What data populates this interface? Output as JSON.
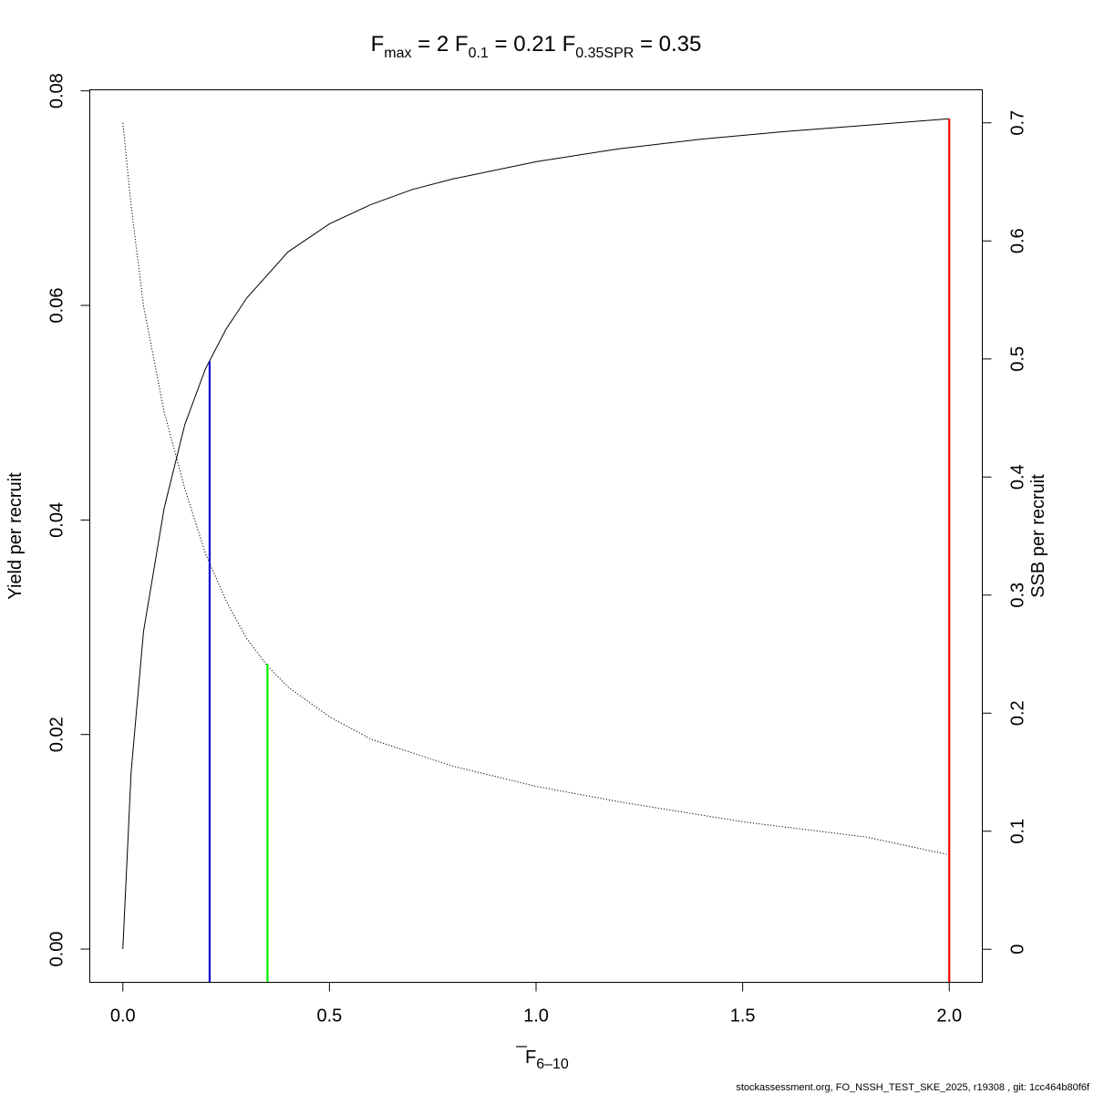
{
  "title": {
    "parts": [
      {
        "main": "F",
        "sub": "max",
        "value": "2"
      },
      {
        "main": "F",
        "sub": "0.1",
        "value": "0.21"
      },
      {
        "main": "F",
        "sub": "0.35SPR",
        "value": "0.35"
      }
    ]
  },
  "footer": "stockassessment.org, FO_NSSH_TEST_SKE_2025, r19308 , git: 1cc464b80f6f",
  "chart_data": {
    "type": "line",
    "xlabel": {
      "main": "F",
      "sub": "6–10",
      "overline": true
    },
    "ylabel": "Yield per recruit",
    "y2label": "SSB per recruit",
    "xlim": [
      -0.08,
      2.08
    ],
    "ylim": [
      -0.0031,
      0.0801
    ],
    "y2lim": [
      -0.028,
      0.728
    ],
    "x_ticks": [
      "0.0",
      "0.5",
      "1.0",
      "1.5",
      "2.0"
    ],
    "y_ticks": [
      "0.00",
      "0.02",
      "0.04",
      "0.06",
      "0.08"
    ],
    "y2_ticks": [
      "0",
      "0.1",
      "0.2",
      "0.3",
      "0.4",
      "0.5",
      "0.6",
      "0.7"
    ],
    "grid": false,
    "series": [
      {
        "line_style": "solid",
        "axis": "left",
        "color": "#000000",
        "x": [
          0.0,
          0.02,
          0.05,
          0.1,
          0.15,
          0.2,
          0.25,
          0.3,
          0.4,
          0.5,
          0.6,
          0.7,
          0.8,
          1.0,
          1.2,
          1.4,
          1.6,
          1.8,
          2.0
        ],
        "y": [
          0.0,
          0.0165,
          0.0296,
          0.0411,
          0.0489,
          0.0541,
          0.0578,
          0.0607,
          0.065,
          0.0676,
          0.0694,
          0.0708,
          0.0718,
          0.0734,
          0.0746,
          0.0755,
          0.0762,
          0.0768,
          0.0774
        ]
      },
      {
        "line_style": "dotted",
        "axis": "right",
        "color": "#000000",
        "x": [
          0.0,
          0.02,
          0.05,
          0.1,
          0.15,
          0.2,
          0.25,
          0.3,
          0.35,
          0.4,
          0.5,
          0.6,
          0.8,
          1.0,
          1.2,
          1.5,
          1.8,
          2.0
        ],
        "y": [
          0.7,
          0.63,
          0.545,
          0.455,
          0.39,
          0.335,
          0.295,
          0.263,
          0.24,
          0.222,
          0.197,
          0.178,
          0.155,
          0.138,
          0.125,
          0.108,
          0.095,
          0.08
        ]
      }
    ],
    "reference_lines": [
      {
        "label": "F0.1",
        "x": 0.21,
        "y": 0.0548,
        "color": "#0000cc"
      },
      {
        "label": "F0.35SPR",
        "x": 0.35,
        "y": 0.0266,
        "color": "#00ee00"
      },
      {
        "label": "Fmax",
        "x": 2.0,
        "y": 0.0774,
        "color": "#ff0000"
      }
    ]
  }
}
